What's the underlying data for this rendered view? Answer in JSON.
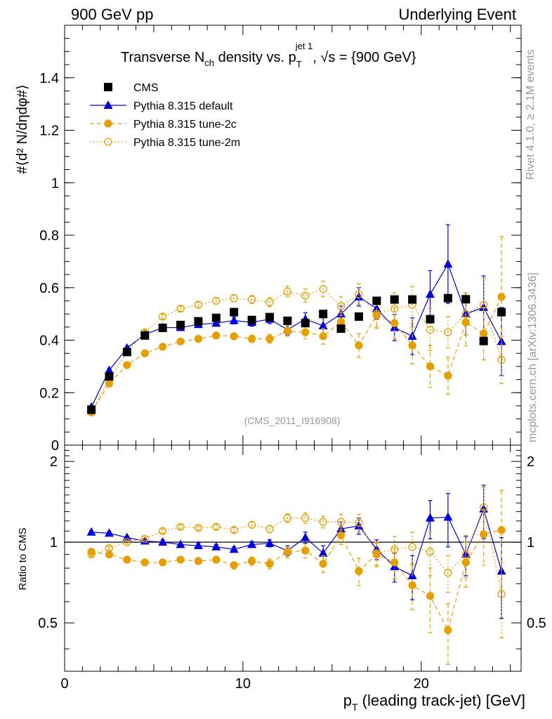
{
  "header": {
    "left": "900 GeV pp",
    "right": "Underlying Event"
  },
  "side_labels": {
    "rivet": "Rivet 4.1.0, ≥ 2.1M events",
    "mcplots": "mcplots.cern.ch [arXiv:1306.3436]"
  },
  "watermark": "(CMS_2011_I916908)",
  "colors": {
    "cms": "#000000",
    "default": "#0000dd",
    "tune2c": "#e69f00",
    "tune2m": "#e69f00",
    "grey": "#999999"
  },
  "chart_data": [
    {
      "type": "scatter",
      "panel": "main",
      "title_parts": {
        "a": "Transverse N",
        "a_sub": "ch",
        "b": " density vs. p",
        "b_sup": "jet 1",
        "b_sub": "T",
        "c": ", √s = {900 GeV}"
      },
      "ylabel": "#⟨d² N/dηdφ#⟩",
      "ylim": [
        0,
        1.6
      ],
      "yticks": [
        {
          "v": 0,
          "label": "0"
        },
        {
          "v": 0.2,
          "label": "0.2"
        },
        {
          "v": 0.4,
          "label": "0.4"
        },
        {
          "v": 0.6,
          "label": "0.6"
        },
        {
          "v": 0.8,
          "label": "0.8"
        },
        {
          "v": 1.0,
          "label": "1"
        },
        {
          "v": 1.2,
          "label": "1.2"
        },
        {
          "v": 1.4,
          "label": "1.4"
        }
      ],
      "xlim": [
        0,
        25.6
      ],
      "x": [
        1.5,
        2.5,
        3.5,
        4.5,
        5.5,
        6.5,
        7.5,
        8.5,
        9.5,
        10.5,
        11.5,
        12.5,
        13.5,
        14.5,
        15.5,
        16.5,
        17.5,
        18.5,
        19.5,
        20.5,
        21.5,
        22.5,
        23.5,
        24.5
      ],
      "legend": [
        "CMS",
        "Pythia 8.315 default",
        "Pythia 8.315 tune-2c",
        "Pythia 8.315 tune-2m"
      ],
      "series": [
        {
          "name": "CMS",
          "key": "cms",
          "values": [
            0.135,
            0.262,
            0.355,
            0.418,
            0.447,
            0.458,
            0.472,
            0.485,
            0.507,
            0.477,
            0.488,
            0.474,
            0.465,
            0.5,
            0.444,
            0.49,
            0.55,
            0.555,
            0.555,
            0.48,
            0.56,
            0.556,
            0.397,
            0.507
          ],
          "errors": [
            0.005,
            0.005,
            0.005,
            0.005,
            0.005,
            0.005,
            0.005,
            0.005,
            0.005,
            0.005,
            0.005,
            0.005,
            0.005,
            0.005,
            0.005,
            0.005,
            0.008,
            0.008,
            0.01,
            0.01,
            0.01,
            0.01,
            0.012,
            0.015
          ]
        },
        {
          "name": "Pythia 8.315 default",
          "key": "default",
          "values": [
            0.145,
            0.285,
            0.37,
            0.422,
            0.448,
            0.448,
            0.46,
            0.465,
            0.475,
            0.468,
            0.48,
            0.44,
            0.48,
            0.455,
            0.5,
            0.565,
            0.52,
            0.448,
            0.415,
            0.575,
            0.69,
            0.5,
            0.525,
            0.395
          ],
          "errors": [
            0.006,
            0.008,
            0.008,
            0.008,
            0.01,
            0.01,
            0.012,
            0.012,
            0.013,
            0.015,
            0.017,
            0.02,
            0.025,
            0.03,
            0.03,
            0.035,
            0.04,
            0.05,
            0.07,
            0.09,
            0.15,
            0.08,
            0.12,
            0.13
          ]
        },
        {
          "name": "Pythia 8.315 tune-2c",
          "key": "tune2c",
          "values": [
            0.125,
            0.235,
            0.305,
            0.35,
            0.375,
            0.395,
            0.405,
            0.418,
            0.415,
            0.405,
            0.405,
            0.435,
            0.43,
            0.415,
            0.47,
            0.38,
            0.495,
            0.465,
            0.38,
            0.3,
            0.265,
            0.468,
            0.425,
            0.565
          ],
          "errors": [
            0.005,
            0.006,
            0.007,
            0.008,
            0.008,
            0.009,
            0.01,
            0.011,
            0.012,
            0.014,
            0.016,
            0.02,
            0.025,
            0.03,
            0.035,
            0.045,
            0.05,
            0.06,
            0.07,
            0.08,
            0.07,
            0.09,
            0.1,
            0.23
          ]
        },
        {
          "name": "Pythia 8.315 tune-2m",
          "key": "tune2m",
          "values": [
            0.125,
            0.25,
            0.355,
            0.43,
            0.49,
            0.52,
            0.535,
            0.55,
            0.56,
            0.555,
            0.545,
            0.585,
            0.57,
            0.595,
            0.53,
            0.575,
            0.5,
            0.52,
            0.535,
            0.44,
            0.43,
            0.5,
            0.535,
            0.325
          ],
          "errors": [
            0.005,
            0.006,
            0.007,
            0.008,
            0.009,
            0.01,
            0.011,
            0.012,
            0.013,
            0.015,
            0.017,
            0.02,
            0.025,
            0.03,
            0.035,
            0.04,
            0.05,
            0.06,
            0.07,
            0.08,
            0.06,
            0.08,
            0.1,
            0.09
          ]
        }
      ]
    },
    {
      "type": "scatter",
      "panel": "ratio",
      "ylabel": "Ratio to CMS",
      "xlabel": "p_T (leading track-jet) [GeV]",
      "xlabel_parts": {
        "a": "p",
        "sub": "T",
        "b": " (leading track-jet) [GeV]"
      },
      "xlim": [
        0,
        25.6
      ],
      "ylim": [
        0.33,
        2.3
      ],
      "yscale": "log",
      "reference": 1,
      "xticks": [
        {
          "v": 0,
          "label": "0"
        },
        {
          "v": 10,
          "label": "10"
        },
        {
          "v": 20,
          "label": "20"
        }
      ],
      "yticks": [
        {
          "v": 0.5,
          "label": "0.5"
        },
        {
          "v": 1,
          "label": "1"
        },
        {
          "v": 2,
          "label": "2"
        }
      ],
      "x": [
        1.5,
        2.5,
        3.5,
        4.5,
        5.5,
        6.5,
        7.5,
        8.5,
        9.5,
        10.5,
        11.5,
        12.5,
        13.5,
        14.5,
        15.5,
        16.5,
        17.5,
        18.5,
        19.5,
        20.5,
        21.5,
        22.5,
        23.5,
        24.5
      ],
      "series": [
        {
          "name": "Pythia 8.315 default",
          "key": "default",
          "values": [
            1.09,
            1.08,
            1.04,
            1.01,
            1.0,
            0.98,
            0.97,
            0.96,
            0.94,
            0.98,
            0.99,
            0.93,
            1.04,
            0.91,
            1.12,
            1.15,
            0.94,
            0.81,
            0.75,
            1.23,
            1.24,
            0.9,
            1.33,
            0.78
          ],
          "errors": [
            0.015,
            0.015,
            0.015,
            0.015,
            0.02,
            0.02,
            0.02,
            0.02,
            0.02,
            0.025,
            0.03,
            0.04,
            0.05,
            0.06,
            0.07,
            0.08,
            0.08,
            0.1,
            0.14,
            0.2,
            0.28,
            0.15,
            0.3,
            0.26
          ]
        },
        {
          "name": "Pythia 8.315 tune-2c",
          "key": "tune2c",
          "values": [
            0.92,
            0.9,
            0.86,
            0.84,
            0.84,
            0.86,
            0.85,
            0.86,
            0.82,
            0.85,
            0.83,
            0.92,
            0.93,
            0.83,
            1.06,
            0.78,
            0.9,
            0.84,
            0.69,
            0.63,
            0.47,
            0.84,
            1.07,
            1.11
          ],
          "errors": [
            0.015,
            0.015,
            0.015,
            0.015,
            0.02,
            0.02,
            0.02,
            0.02,
            0.025,
            0.03,
            0.035,
            0.045,
            0.055,
            0.06,
            0.08,
            0.09,
            0.09,
            0.11,
            0.13,
            0.17,
            0.12,
            0.16,
            0.25,
            0.45
          ]
        },
        {
          "name": "Pythia 8.315 tune-2m",
          "key": "tune2m",
          "values": [
            0.9,
            0.95,
            1.0,
            1.03,
            1.1,
            1.14,
            1.13,
            1.14,
            1.11,
            1.16,
            1.12,
            1.23,
            1.23,
            1.19,
            1.19,
            1.18,
            0.91,
            0.94,
            0.96,
            0.92,
            0.77,
            0.9,
            1.35,
            0.64
          ],
          "errors": [
            0.015,
            0.015,
            0.015,
            0.015,
            0.02,
            0.02,
            0.02,
            0.025,
            0.025,
            0.03,
            0.035,
            0.045,
            0.055,
            0.06,
            0.08,
            0.09,
            0.09,
            0.11,
            0.13,
            0.17,
            0.12,
            0.16,
            0.25,
            0.2
          ]
        }
      ]
    }
  ]
}
